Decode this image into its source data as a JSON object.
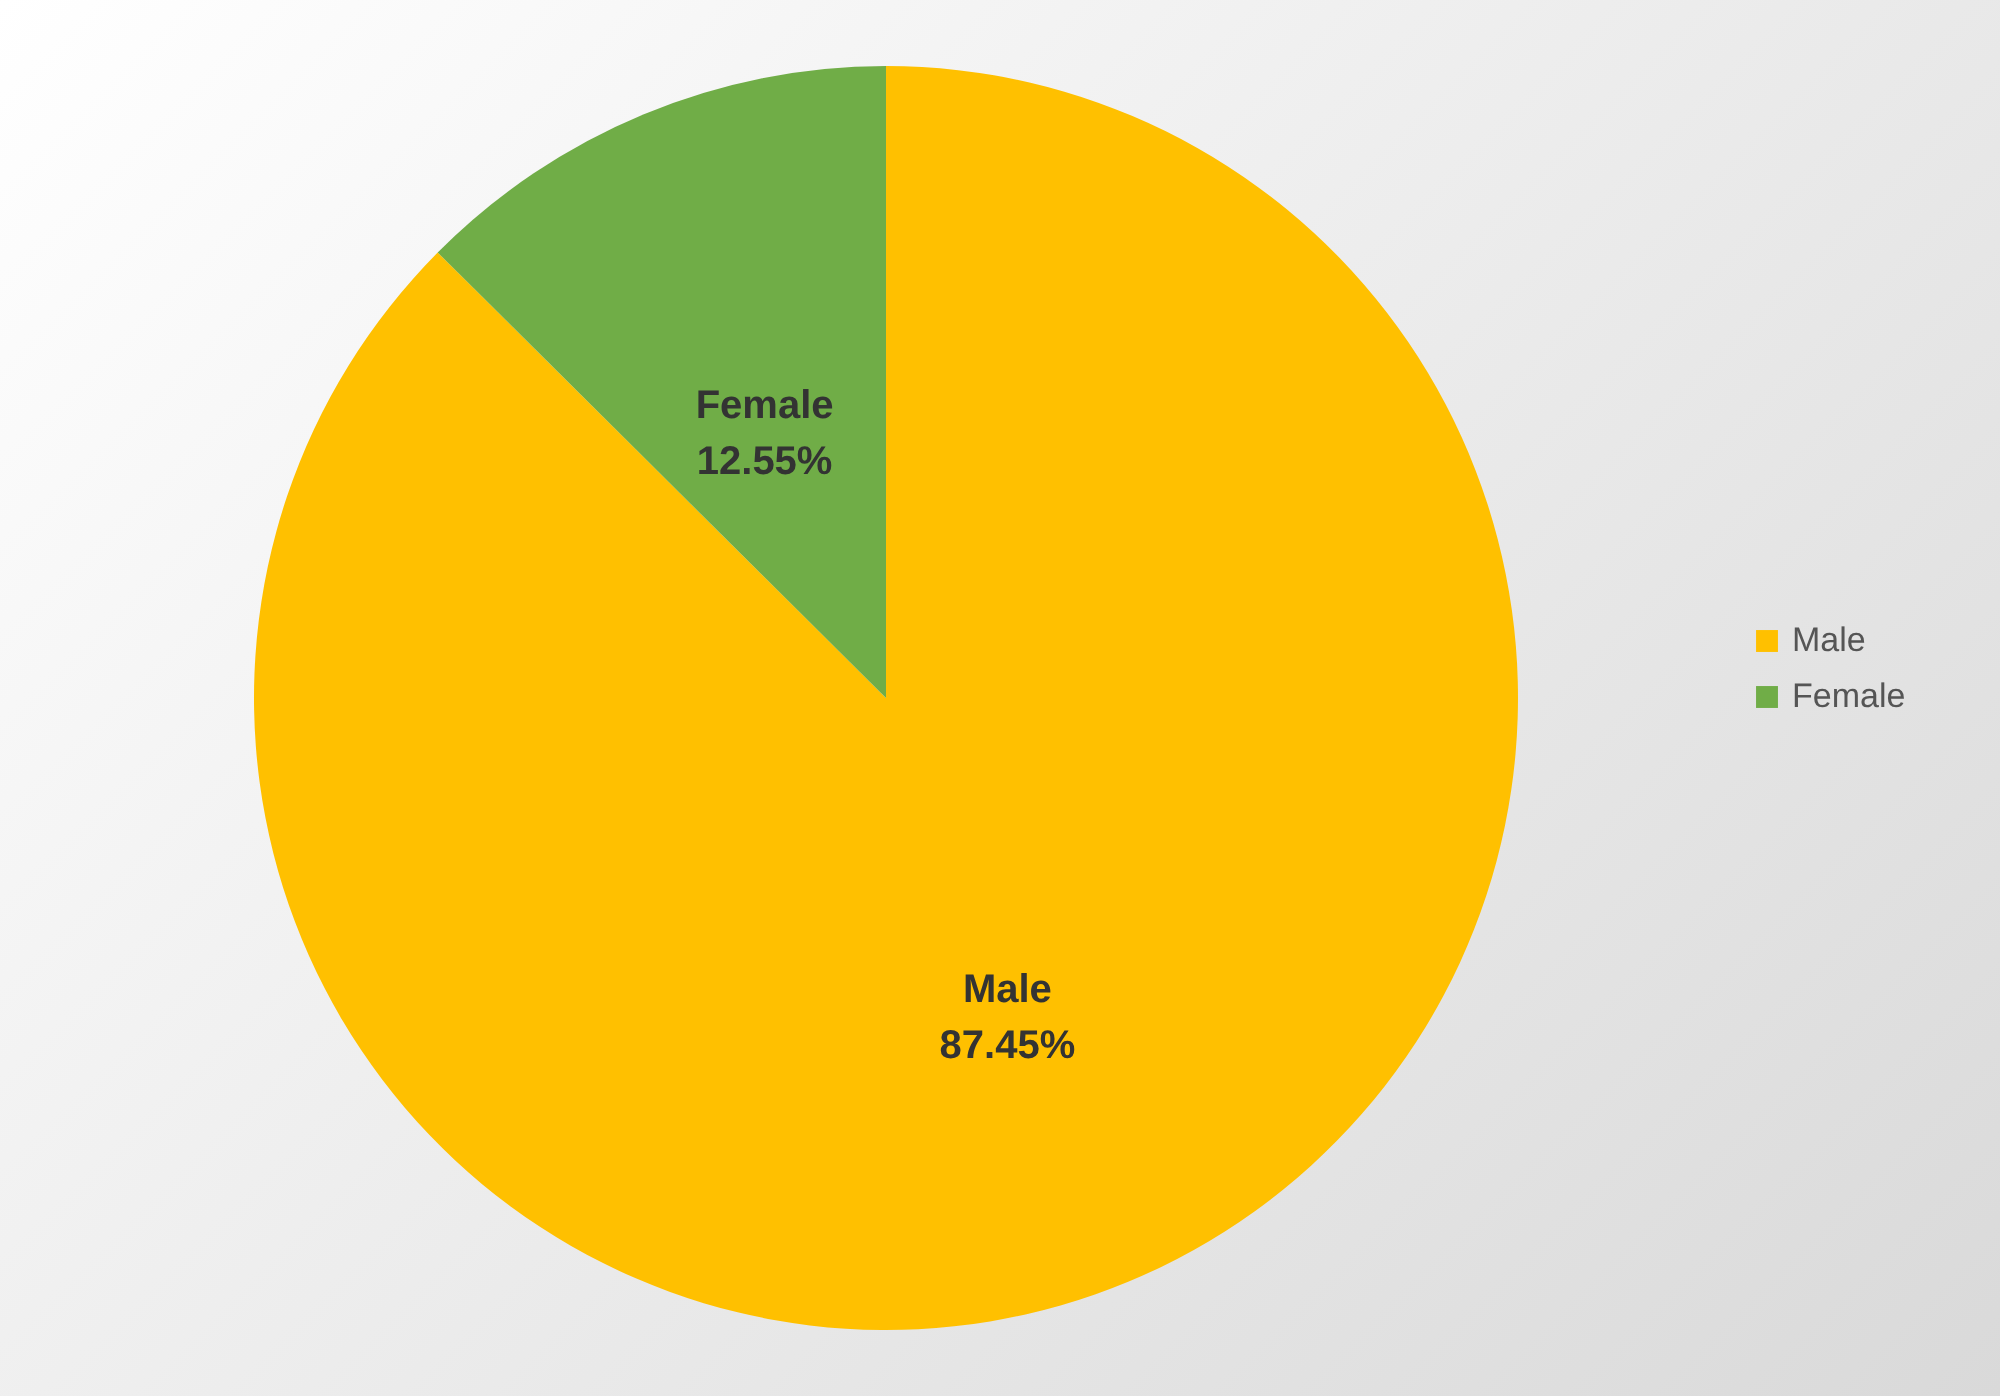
{
  "chart_data": {
    "type": "pie",
    "categories": [
      "Male",
      "Female"
    ],
    "values": [
      87.45,
      12.55
    ],
    "colors": [
      "#ffc000",
      "#70ad47"
    ],
    "value_labels": [
      "87.45%",
      "12.55%"
    ],
    "legend": "right"
  }
}
